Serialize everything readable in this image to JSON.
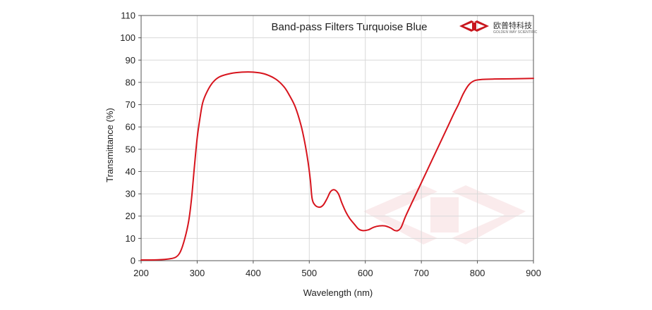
{
  "chart_data": {
    "type": "line",
    "title": "Band-pass  Filters Turquoise Blue",
    "xlabel": "Wavelength (nm)",
    "ylabel": "Transmittance (%)",
    "xlim": [
      200,
      900
    ],
    "ylim": [
      0,
      110
    ],
    "xticks": [
      "200",
      "300",
      "400",
      "500",
      "600",
      "700",
      "800",
      "900"
    ],
    "yticks": [
      "0",
      "10",
      "20",
      "30",
      "40",
      "50",
      "60",
      "70",
      "80",
      "90",
      "100",
      "110"
    ],
    "grid": true,
    "colors": {
      "line": "#d7141d",
      "grid": "#d9d9d9",
      "axis": "#555555",
      "logo_red": "#c8161d"
    },
    "series": [
      {
        "points": [
          [
            200,
            0.3
          ],
          [
            230,
            0.4
          ],
          [
            250,
            0.8
          ],
          [
            262,
            1.6
          ],
          [
            270,
            4
          ],
          [
            278,
            10
          ],
          [
            285,
            18
          ],
          [
            290,
            28
          ],
          [
            295,
            42
          ],
          [
            300,
            55
          ],
          [
            305,
            64
          ],
          [
            310,
            71
          ],
          [
            318,
            76
          ],
          [
            328,
            80
          ],
          [
            340,
            82.5
          ],
          [
            360,
            84
          ],
          [
            380,
            84.6
          ],
          [
            400,
            84.6
          ],
          [
            420,
            83.8
          ],
          [
            440,
            81.5
          ],
          [
            455,
            78
          ],
          [
            465,
            74
          ],
          [
            475,
            69
          ],
          [
            485,
            61
          ],
          [
            492,
            53
          ],
          [
            498,
            44
          ],
          [
            502,
            36
          ],
          [
            505,
            28
          ],
          [
            510,
            25
          ],
          [
            518,
            24
          ],
          [
            525,
            25
          ],
          [
            532,
            28
          ],
          [
            538,
            31
          ],
          [
            545,
            31.8
          ],
          [
            552,
            30
          ],
          [
            558,
            26
          ],
          [
            565,
            22
          ],
          [
            572,
            19
          ],
          [
            580,
            16.5
          ],
          [
            588,
            14.2
          ],
          [
            595,
            13.5
          ],
          [
            605,
            13.8
          ],
          [
            615,
            15
          ],
          [
            625,
            15.6
          ],
          [
            635,
            15.6
          ],
          [
            645,
            14.7
          ],
          [
            652,
            13.6
          ],
          [
            658,
            13.5
          ],
          [
            664,
            15
          ],
          [
            672,
            20
          ],
          [
            685,
            27
          ],
          [
            700,
            35
          ],
          [
            715,
            43
          ],
          [
            730,
            51
          ],
          [
            745,
            59
          ],
          [
            758,
            66
          ],
          [
            766,
            70
          ],
          [
            775,
            75
          ],
          [
            785,
            79
          ],
          [
            795,
            80.8
          ],
          [
            808,
            81.3
          ],
          [
            830,
            81.5
          ],
          [
            860,
            81.6
          ],
          [
            900,
            81.8
          ]
        ]
      }
    ]
  },
  "logo": {
    "name": "欧普特科技",
    "subtitle": "GOLDEN WAY SCIENTIFIC"
  }
}
